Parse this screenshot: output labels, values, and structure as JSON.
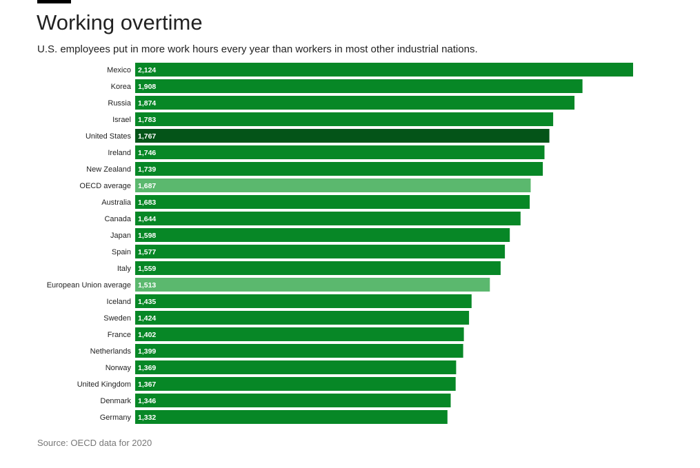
{
  "header": {
    "title": "Working overtime",
    "subtitle": "U.S. employees put in more work hours every year than workers in most other industrial nations."
  },
  "footer": {
    "source": "Source: OECD data for 2020"
  },
  "colors": {
    "bar_default": "#078726",
    "bar_highlight": "#045418",
    "bar_average": "#5bb86e",
    "rule": "#000000"
  },
  "chart_data": {
    "type": "bar",
    "orientation": "horizontal",
    "title": "Working overtime",
    "subtitle": "U.S. employees put in more work hours every year than workers in most other industrial nations.",
    "xlabel": "",
    "ylabel": "",
    "xlim": [
      0,
      2124
    ],
    "grid": false,
    "legend": "none",
    "data_labels": "inside-left",
    "categories": [
      "Mexico",
      "Korea",
      "Russia",
      "Israel",
      "United States",
      "Ireland",
      "New Zealand",
      "OECD average",
      "Australia",
      "Canada",
      "Japan",
      "Spain",
      "Italy",
      "European Union average",
      "Iceland",
      "Sweden",
      "France",
      "Netherlands",
      "Norway",
      "United Kingdom",
      "Denmark",
      "Germany"
    ],
    "values": [
      2124,
      1908,
      1874,
      1783,
      1767,
      1746,
      1739,
      1687,
      1683,
      1644,
      1598,
      1577,
      1559,
      1513,
      1435,
      1424,
      1402,
      1399,
      1369,
      1367,
      1346,
      1332
    ],
    "value_labels": [
      "2,124",
      "1,908",
      "1,874",
      "1,783",
      "1,767",
      "1,746",
      "1,739",
      "1,687",
      "1,683",
      "1,644",
      "1,598",
      "1,577",
      "1,559",
      "1,513",
      "1,435",
      "1,424",
      "1,402",
      "1,399",
      "1,369",
      "1,367",
      "1,346",
      "1,332"
    ],
    "bar_styles": [
      "default",
      "default",
      "default",
      "default",
      "highlight",
      "default",
      "default",
      "average",
      "default",
      "default",
      "default",
      "default",
      "default",
      "average",
      "default",
      "default",
      "default",
      "default",
      "default",
      "default",
      "default",
      "default"
    ],
    "source": "Source: OECD data for 2020"
  }
}
